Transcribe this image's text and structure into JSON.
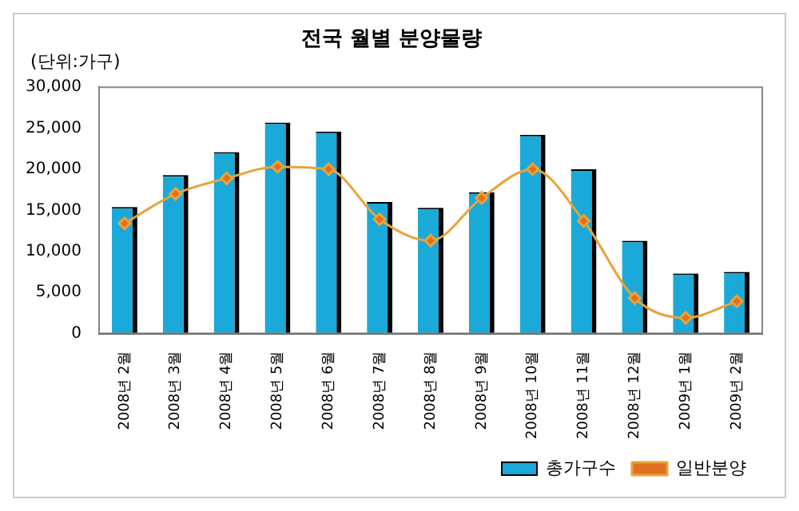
{
  "chart_data": {
    "type": "bar",
    "title": "전국 월별 분양물량",
    "annotations": [
      "(단위:가구)"
    ],
    "categories": [
      "2008년 2월",
      "2008년 3월",
      "2008년 4월",
      "2008년 5월",
      "2008년 6월",
      "2008년 7월",
      "2008년 8월",
      "2008년 9월",
      "2008년 10월",
      "2008년 11월",
      "2008년 12월",
      "2009년 1월",
      "2009년 2월"
    ],
    "series": [
      {
        "name": "총가구수",
        "color": "#1aa9d8",
        "values": [
          15400,
          19300,
          22100,
          25700,
          24600,
          16000,
          15300,
          17200,
          24200,
          20000,
          11300,
          7300,
          7500
        ]
      },
      {
        "name": "일반분양",
        "type": "line",
        "color": "#e8a33a",
        "marker": "diamond",
        "values": [
          13400,
          17000,
          18900,
          20300,
          20000,
          13900,
          11300,
          16500,
          20000,
          13700,
          4300,
          1900,
          3900
        ]
      }
    ],
    "ylim": [
      0,
      30000
    ],
    "yticks": [
      {
        "value": 0,
        "label": "0"
      },
      {
        "value": 5000,
        "label": "5,000"
      },
      {
        "value": 10000,
        "label": "10,000"
      },
      {
        "value": 15000,
        "label": "15,000"
      },
      {
        "value": 20000,
        "label": "20,000"
      },
      {
        "value": 25000,
        "label": "25,000"
      },
      {
        "value": 30000,
        "label": "30,000"
      }
    ],
    "grid": false,
    "legend": "bottom right"
  }
}
